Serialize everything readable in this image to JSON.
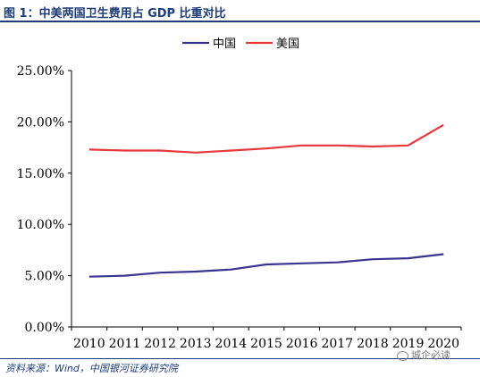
{
  "figure_title": "图 1：中美两国卫生费用占 GDP 比重对比",
  "source": "资料来源：Wind，中国银河证券研究院",
  "watermark": "城企必读",
  "colors": {
    "china": "#3a3490",
    "usa": "#e8363a",
    "title": "#1e3c78"
  },
  "chart_data": {
    "type": "line",
    "x": [
      2010,
      2011,
      2012,
      2013,
      2014,
      2015,
      2016,
      2017,
      2018,
      2019,
      2020
    ],
    "series": [
      {
        "name": "中国",
        "color": "#3a3490",
        "values": [
          4.9,
          5.0,
          5.3,
          5.4,
          5.6,
          6.1,
          6.2,
          6.3,
          6.6,
          6.7,
          7.1
        ]
      },
      {
        "name": "美国",
        "color": "#e8363a",
        "values": [
          17.3,
          17.2,
          17.2,
          17.0,
          17.2,
          17.4,
          17.7,
          17.7,
          17.6,
          17.7,
          19.7
        ]
      }
    ],
    "y_ticks": [
      "0.00%",
      "5.00%",
      "10.00%",
      "15.00%",
      "20.00%",
      "25.00%"
    ],
    "ylim": [
      0,
      25
    ],
    "grid": false,
    "legend_position": "top-center"
  }
}
